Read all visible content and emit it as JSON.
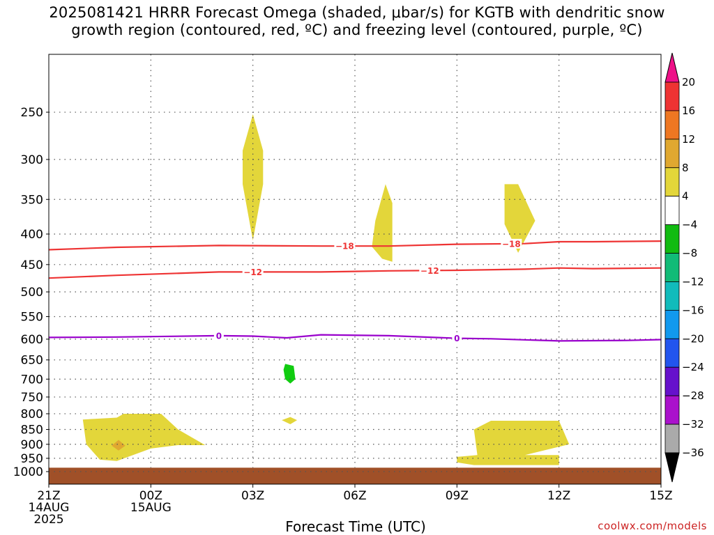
{
  "title_line1": "2025081421 HRRR Forecast Omega (shaded, μbar/s) for KGTB with dendritic snow",
  "title_line2": "growth region (contoured, red, ºC) and freezing level (contoured, purple, ºC)",
  "xlabel": "Forecast Time (UTC)",
  "credit": "coolwx.com/models",
  "chart_data": {
    "type": "heatmap",
    "title": "2025081421 HRRR Forecast Omega (shaded, μbar/s) for KGTB with dendritic snow growth region (contoured, red, ºC) and freezing level (contoured, purple, ºC)",
    "xlabel": "Forecast Time (UTC)",
    "ylabel": "",
    "x_unit": "forecast hours from 21Z 14AUG 2025",
    "xlim": [
      0,
      18
    ],
    "ylim": [
      1000,
      200
    ],
    "x_ticks": [
      {
        "x": 0,
        "lines": [
          "21Z",
          "14AUG",
          "2025"
        ]
      },
      {
        "x": 3,
        "lines": [
          "00Z",
          "15AUG"
        ]
      },
      {
        "x": 6,
        "lines": [
          "03Z"
        ]
      },
      {
        "x": 9,
        "lines": [
          "06Z"
        ]
      },
      {
        "x": 12,
        "lines": [
          "09Z"
        ]
      },
      {
        "x": 15,
        "lines": [
          "12Z"
        ]
      },
      {
        "x": 18,
        "lines": [
          "15Z"
        ]
      }
    ],
    "y_ticks": [
      250,
      300,
      350,
      400,
      450,
      500,
      550,
      600,
      650,
      700,
      750,
      800,
      850,
      900,
      950,
      1000
    ],
    "grid": true,
    "colorbar": {
      "labels": [
        "20",
        "16",
        "12",
        "8",
        "4",
        "−4",
        "−8",
        "−12",
        "−16",
        "−20",
        "−24",
        "−28",
        "−32",
        "−36"
      ],
      "colors": [
        "#ee1188",
        "#ee3333",
        "#ee7722",
        "#e0a830",
        "#e3d63a",
        "#ffffff",
        "#11bb11",
        "#11bb77",
        "#11bbbb",
        "#1199ee",
        "#2255ee",
        "#6611cc",
        "#aa11cc",
        "#aaaaaa",
        "#000000"
      ]
    },
    "contours": [
      {
        "name": "−18",
        "color": "#ee3333",
        "label_x": [
          8.7,
          13.6
        ],
        "points": [
          [
            0,
            425
          ],
          [
            2,
            421
          ],
          [
            5,
            418
          ],
          [
            8,
            419
          ],
          [
            10,
            419
          ],
          [
            12,
            416
          ],
          [
            14,
            415
          ],
          [
            15,
            412
          ],
          [
            16,
            412
          ],
          [
            18,
            411
          ]
        ]
      },
      {
        "name": "−12",
        "color": "#ee3333",
        "label_x": [
          6.0,
          11.2
        ],
        "points": [
          [
            0,
            474
          ],
          [
            2,
            469
          ],
          [
            5,
            463
          ],
          [
            8,
            463
          ],
          [
            10,
            461
          ],
          [
            12,
            460
          ],
          [
            14,
            458
          ],
          [
            15,
            456
          ],
          [
            16,
            457
          ],
          [
            18,
            456
          ]
        ]
      },
      {
        "name": "0",
        "color": "#9900cc",
        "label_x": [
          5.0,
          12.0
        ],
        "points": [
          [
            0,
            596
          ],
          [
            2,
            595
          ],
          [
            5,
            592
          ],
          [
            6,
            593
          ],
          [
            7,
            597
          ],
          [
            8,
            590
          ],
          [
            10,
            592
          ],
          [
            12,
            598
          ],
          [
            13,
            599
          ],
          [
            15,
            604
          ],
          [
            17,
            603
          ],
          [
            18,
            601
          ]
        ]
      }
    ],
    "shaded": [
      {
        "value": 4,
        "color": "#e3d63a",
        "points": [
          [
            5.7,
            330
          ],
          [
            5.7,
            290
          ],
          [
            6.0,
            252
          ],
          [
            6.3,
            290
          ],
          [
            6.3,
            330
          ],
          [
            6.0,
            410
          ]
        ]
      },
      {
        "value": 4,
        "color": "#e3d63a",
        "points": [
          [
            9.5,
            420
          ],
          [
            9.6,
            380
          ],
          [
            9.9,
            330
          ],
          [
            10.1,
            355
          ],
          [
            10.1,
            445
          ],
          [
            9.8,
            440
          ]
        ]
      },
      {
        "value": 4,
        "color": "#e3d63a",
        "points": [
          [
            13.4,
            330
          ],
          [
            13.8,
            330
          ],
          [
            14.3,
            380
          ],
          [
            13.8,
            430
          ],
          [
            13.4,
            385
          ]
        ]
      },
      {
        "value": 4,
        "color": "#e3d63a",
        "points": [
          [
            1.0,
            818
          ],
          [
            2.0,
            812
          ],
          [
            2.2,
            800
          ],
          [
            3.3,
            800
          ],
          [
            3.8,
            850
          ],
          [
            4.6,
            903
          ],
          [
            3.8,
            903
          ],
          [
            3.0,
            915
          ],
          [
            2.0,
            960
          ],
          [
            1.5,
            955
          ],
          [
            1.1,
            900
          ]
        ]
      },
      {
        "value": 4,
        "color": "#e3d63a",
        "points": [
          [
            12.5,
            850
          ],
          [
            13.0,
            822
          ],
          [
            15.0,
            822
          ],
          [
            15.3,
            900
          ],
          [
            14.0,
            938
          ],
          [
            15.0,
            938
          ],
          [
            15.0,
            975
          ],
          [
            12.5,
            975
          ],
          [
            12.0,
            965
          ],
          [
            12.0,
            945
          ],
          [
            12.6,
            938
          ]
        ]
      },
      {
        "value": 8,
        "color": "#e0a830",
        "points": [
          [
            2.05,
            885
          ],
          [
            2.25,
            905
          ],
          [
            2.05,
            922
          ],
          [
            1.85,
            905
          ]
        ]
      },
      {
        "value": 4,
        "color": "#e3d63a",
        "points": [
          [
            6.85,
            820
          ],
          [
            7.1,
            810
          ],
          [
            7.3,
            820
          ],
          [
            7.1,
            833
          ]
        ]
      },
      {
        "value": -4,
        "color": "#11cc11",
        "points": [
          [
            6.95,
            660
          ],
          [
            7.2,
            665
          ],
          [
            7.25,
            700
          ],
          [
            7.1,
            712
          ],
          [
            6.95,
            700
          ],
          [
            6.9,
            675
          ]
        ]
      }
    ],
    "terrain": {
      "color": "#a05028",
      "top_pressure": 985
    }
  }
}
